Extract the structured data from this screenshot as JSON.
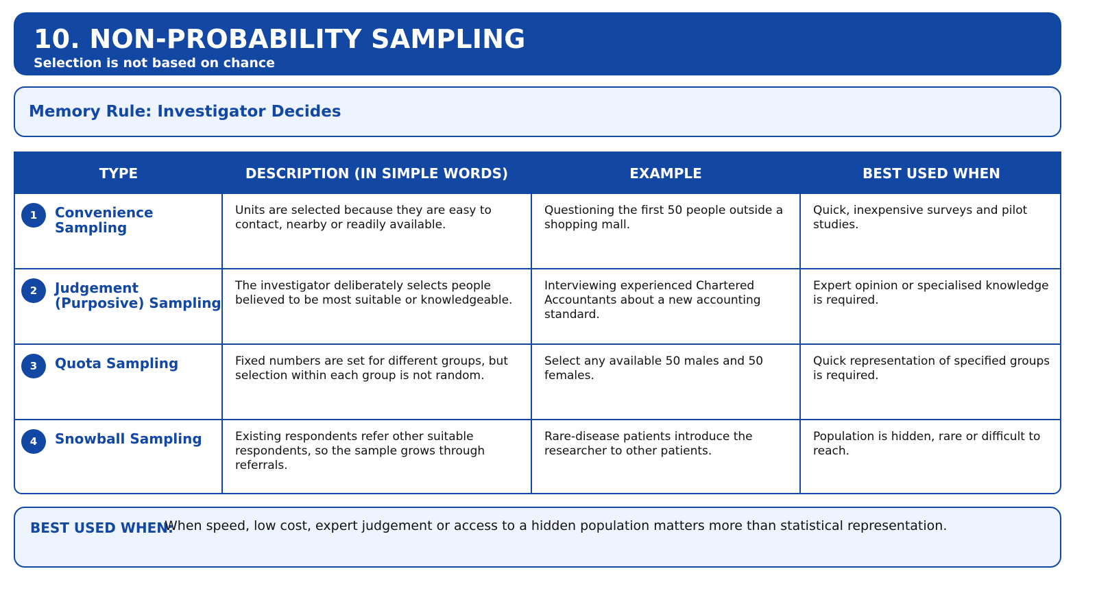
{
  "header": {
    "title": "10. NON-PROBABILITY SAMPLING",
    "subtitle": "Selection is not based on chance"
  },
  "memory_rule": {
    "text": "Memory Rule: Investigator Decides"
  },
  "table": {
    "headers": [
      "TYPE",
      "DESCRIPTION (IN SIMPLE WORDS)",
      "EXAMPLE",
      "BEST USED WHEN"
    ],
    "rows": [
      {
        "number": "1",
        "type": "Convenience Sampling",
        "description": "Units are selected because they are easy to contact, nearby or readily available.",
        "example": "Questioning the first 50 people outside a shopping mall.",
        "best_used_when": "Quick, inexpensive surveys and pilot studies."
      },
      {
        "number": "2",
        "type": "Judgement (Purposive) Sampling",
        "description": "The investigator deliberately selects people believed to be most suitable or knowledgeable.",
        "example": "Interviewing experienced Chartered Accountants about a new accounting standard.",
        "best_used_when": "Expert opinion or specialised knowledge is required."
      },
      {
        "number": "3",
        "type": "Quota Sampling",
        "description": "Fixed numbers are set for different groups, but selection within each group is not random.",
        "example": "Select any available 50 males and 50 females.",
        "best_used_when": "Quick representation of specified groups is required."
      },
      {
        "number": "4",
        "type": "Snowball Sampling",
        "description": "Existing respondents refer other suitable respondents, so the sample grows through referrals.",
        "example": "Rare-disease patients introduce the researcher to other patients.",
        "best_used_when": "Population is hidden, rare or difficult to reach."
      }
    ]
  },
  "footer": {
    "label": "BEST USED WHEN:",
    "text": "When speed, low cost, expert judgement or access to a hidden population matters more than statistical representation."
  },
  "colors": {
    "primary": "#1247a3",
    "light_panel": "#edf3ff",
    "text": "#111111",
    "white": "#ffffff"
  }
}
